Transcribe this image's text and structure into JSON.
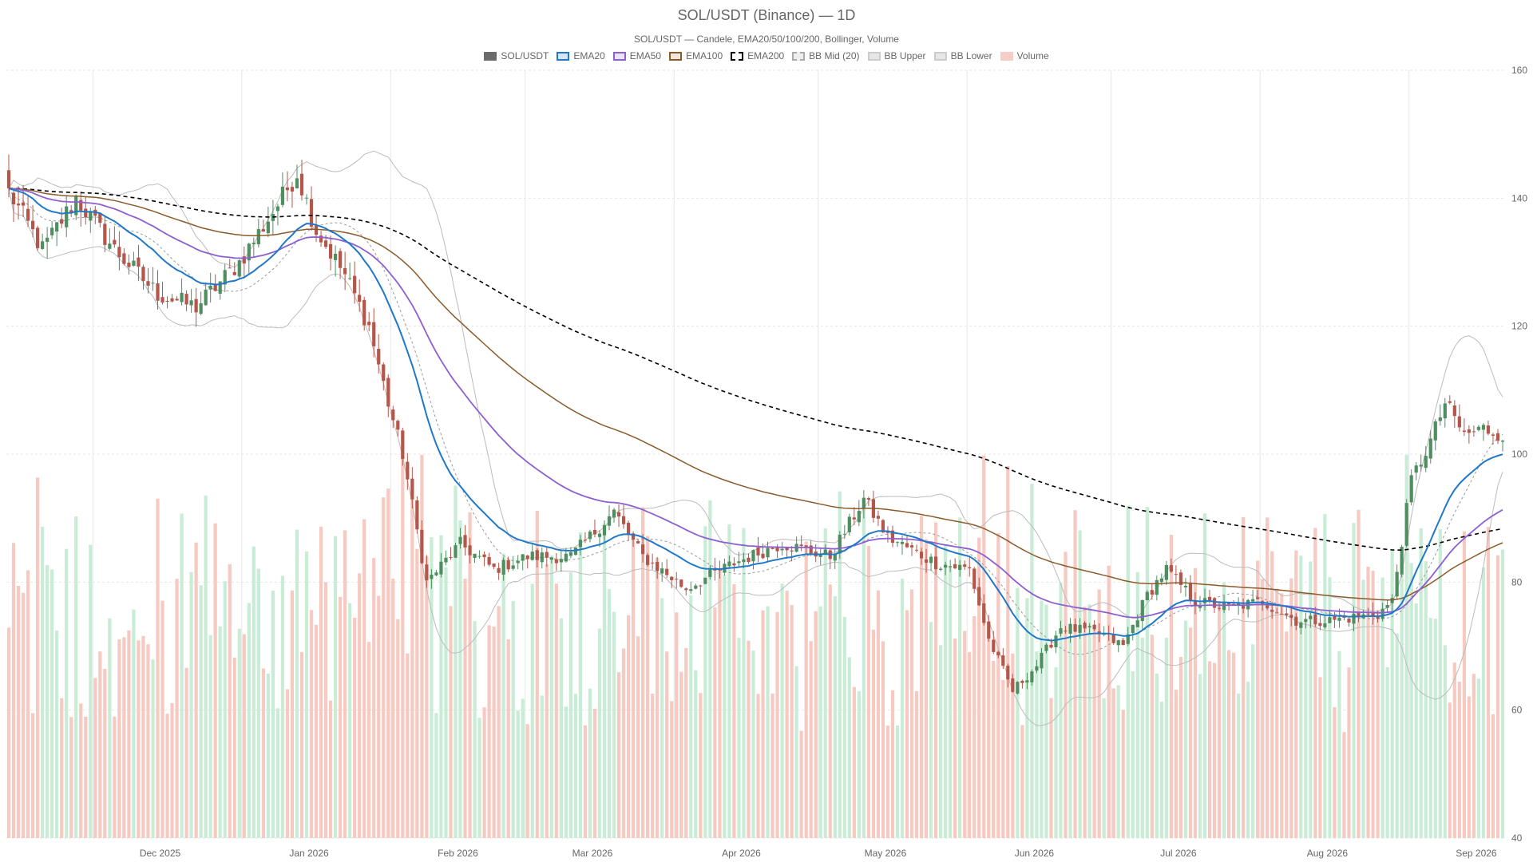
{
  "chart_data": {
    "type": "candlestick",
    "title": "SOL/USDT (Binance) — 1D",
    "subtitle": "SOL/USDT — Candele, EMA20/50/100/200, Bollinger, Volume",
    "ylim": [
      40,
      160
    ],
    "y_ticks": [
      "40",
      "60",
      "80",
      "100",
      "120",
      "140",
      "160"
    ],
    "x_ticks": [
      "Dec 2025",
      "Jan 2026",
      "Feb 2026",
      "Mar 2026",
      "Apr 2026",
      "May 2026",
      "Jun 2026",
      "Jul 2026",
      "Aug 2026",
      "Sep 2026"
    ],
    "grid": true,
    "legend_position": "top-center",
    "legend": [
      {
        "name": "SOL/USDT",
        "fill": "#6b6b6b",
        "border": "#6b6b6b",
        "dash": false
      },
      {
        "name": "EMA20",
        "fill": "#d6e8f7",
        "border": "#1f78c8",
        "dash": false
      },
      {
        "name": "EMA50",
        "fill": "#ece3f7",
        "border": "#8e5fd1",
        "dash": false
      },
      {
        "name": "EMA100",
        "fill": "#f3e6dc",
        "border": "#8b5a2b",
        "dash": false
      },
      {
        "name": "EMA200",
        "fill": "#ffffff",
        "border": "#000000",
        "dash": true
      },
      {
        "name": "BB Mid (20)",
        "fill": "#eeeeee",
        "border": "#aaaaaa",
        "dash": true
      },
      {
        "name": "BB Upper",
        "fill": "#e6e6e6",
        "border": "#cccccc",
        "dash": false
      },
      {
        "name": "BB Lower",
        "fill": "#e6e6e6",
        "border": "#cccccc",
        "dash": false
      },
      {
        "name": "Volume",
        "fill": "#f5cfc7",
        "border": "#f5cfc7",
        "dash": false
      }
    ],
    "colors": {
      "up": "#4e8f5f",
      "down": "#b5564a",
      "vol_up": "#c8ecd5",
      "vol_down": "#f6c9c1",
      "ema20": "#1f78c8",
      "ema50": "#8e5fd1",
      "ema100": "#8b5a2b",
      "ema200": "#000000",
      "bb_mid": "#999999",
      "bb_band": "#bbbbbb",
      "grid": "#e6e6e6"
    },
    "x_start": "2025-11-13",
    "key_closes": [
      [
        "2025-11-13",
        141
      ],
      [
        "2025-11-20",
        132
      ],
      [
        "2025-11-27",
        140
      ],
      [
        "2025-12-05",
        132
      ],
      [
        "2025-12-14",
        125
      ],
      [
        "2025-12-22",
        123
      ],
      [
        "2025-12-31",
        130
      ],
      [
        "2026-01-08",
        139
      ],
      [
        "2026-01-12",
        144
      ],
      [
        "2026-01-16",
        135
      ],
      [
        "2026-01-22",
        128
      ],
      [
        "2026-01-27",
        120
      ],
      [
        "2026-01-31",
        108
      ],
      [
        "2026-02-03",
        100
      ],
      [
        "2026-02-08",
        80
      ],
      [
        "2026-02-15",
        86
      ],
      [
        "2026-02-22",
        82
      ],
      [
        "2026-03-01",
        84
      ],
      [
        "2026-03-10",
        84
      ],
      [
        "2026-03-19",
        91
      ],
      [
        "2026-03-25",
        84
      ],
      [
        "2026-04-03",
        79
      ],
      [
        "2026-04-13",
        83
      ],
      [
        "2026-04-23",
        86
      ],
      [
        "2026-05-03",
        84
      ],
      [
        "2026-05-10",
        93
      ],
      [
        "2026-05-15",
        87
      ],
      [
        "2026-05-25",
        83
      ],
      [
        "2026-06-01",
        82
      ],
      [
        "2026-06-05",
        71
      ],
      [
        "2026-06-10",
        63
      ],
      [
        "2026-06-15",
        67
      ],
      [
        "2026-06-20",
        73
      ],
      [
        "2026-06-28",
        72
      ],
      [
        "2026-07-03",
        70
      ],
      [
        "2026-07-08",
        78
      ],
      [
        "2026-07-12",
        82
      ],
      [
        "2026-07-18",
        77
      ],
      [
        "2026-07-25",
        76
      ],
      [
        "2026-08-01",
        77
      ],
      [
        "2026-08-08",
        74
      ],
      [
        "2026-08-15",
        74
      ],
      [
        "2026-08-25",
        75
      ],
      [
        "2026-08-28",
        77
      ],
      [
        "2026-09-01",
        96
      ],
      [
        "2026-09-05",
        102
      ],
      [
        "2026-09-08",
        108
      ],
      [
        "2026-09-12",
        103
      ],
      [
        "2026-09-16",
        104
      ],
      [
        "2026-09-20",
        103
      ]
    ]
  },
  "header": {
    "title": "SOL/USDT (Binance) — 1D",
    "subtitle": "SOL/USDT — Candele, EMA20/50/100/200, Bollinger, Volume"
  }
}
